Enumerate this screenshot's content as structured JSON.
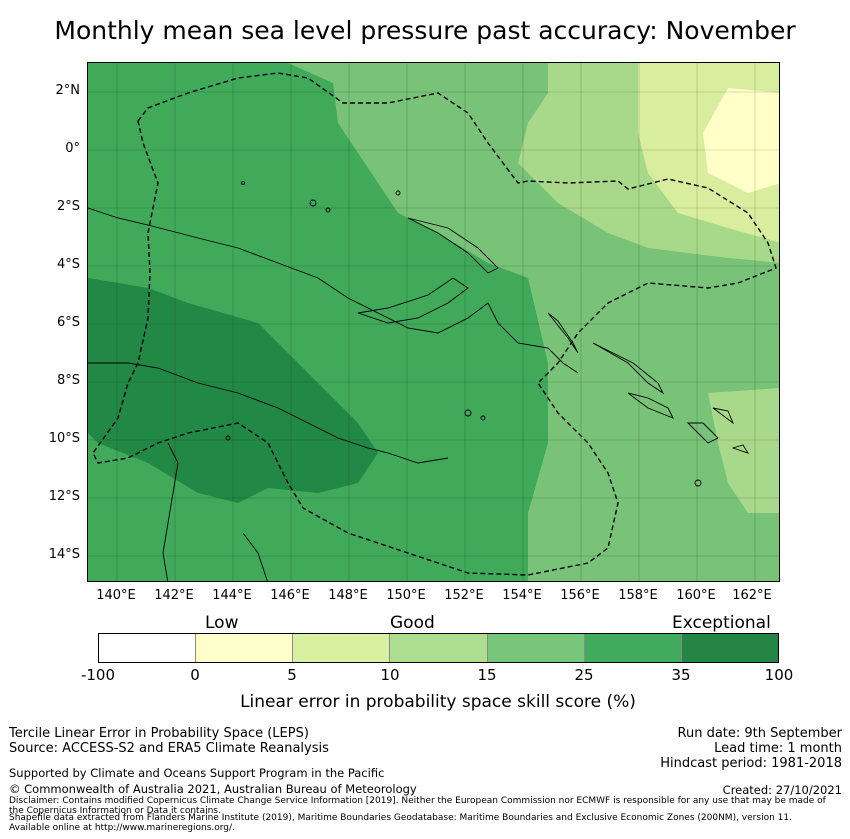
{
  "title": "Monthly mean sea level pressure past accuracy: November",
  "map": {
    "lat_labels": [
      "2°N",
      "0°",
      "2°S",
      "4°S",
      "6°S",
      "8°S",
      "10°S",
      "12°S",
      "14°S"
    ],
    "lon_labels": [
      "140°E",
      "142°E",
      "144°E",
      "146°E",
      "148°E",
      "150°E",
      "152°E",
      "154°E",
      "156°E",
      "158°E",
      "160°E",
      "162°E"
    ],
    "lon_range": [
      139.0,
      163.0
    ],
    "lat_range": [
      -15.0,
      3.0
    ],
    "grid": true,
    "boundary_style": "dashed",
    "fill_colors": {
      "exceptional_dark": "#228845",
      "very_good": "#40a95a",
      "good_mid": "#78c377",
      "good_light": "#a8d98a",
      "low_green": "#d8ee9e",
      "low": "#ffffc8"
    }
  },
  "colorbar": {
    "category_labels": [
      "Low",
      "Good",
      "Exceptional"
    ],
    "tick_labels": [
      "-100",
      "0",
      "5",
      "10",
      "15",
      "25",
      "35",
      "100"
    ],
    "colors": [
      "#ffffff",
      "#ffffcc",
      "#d9f0a3",
      "#addd8e",
      "#78c679",
      "#41ab5d",
      "#238443"
    ],
    "label": "Linear error in probability space skill score (%)"
  },
  "footer": {
    "left_line1": "Tercile Linear Error in Probability Space (LEPS)",
    "left_line2": "Source: ACCESS-S2 and ERA5 Climate Reanalysis",
    "right_line1": "Run date: 9th September",
    "right_line2": "Lead time: 1 month",
    "right_line3": "Hindcast period: 1981-2018",
    "supported": "Supported by Climate and Oceans Support Program in the Pacific",
    "copyright": "© Commonwealth of Australia 2021, Australian Bureau of Meteorology",
    "created": "Created: 27/10/2021",
    "disclaimer1": "Disclaimer: Contains modified Copernicus Climate Change Service Information [2019]. Neither the European Commission nor ECMWF is responsible for any use that may be made of",
    "disclaimer2": "the Copernicus Information or Data it contains.",
    "disclaimer3": "Shapefile data extracted from Flanders Marine Institute (2019), Maritime Boundaries Geodatabase: Maritime Boundaries and Exclusive Economic Zones (200NM), version 11.",
    "disclaimer4": "Available online at http://www.marineregions.org/."
  }
}
